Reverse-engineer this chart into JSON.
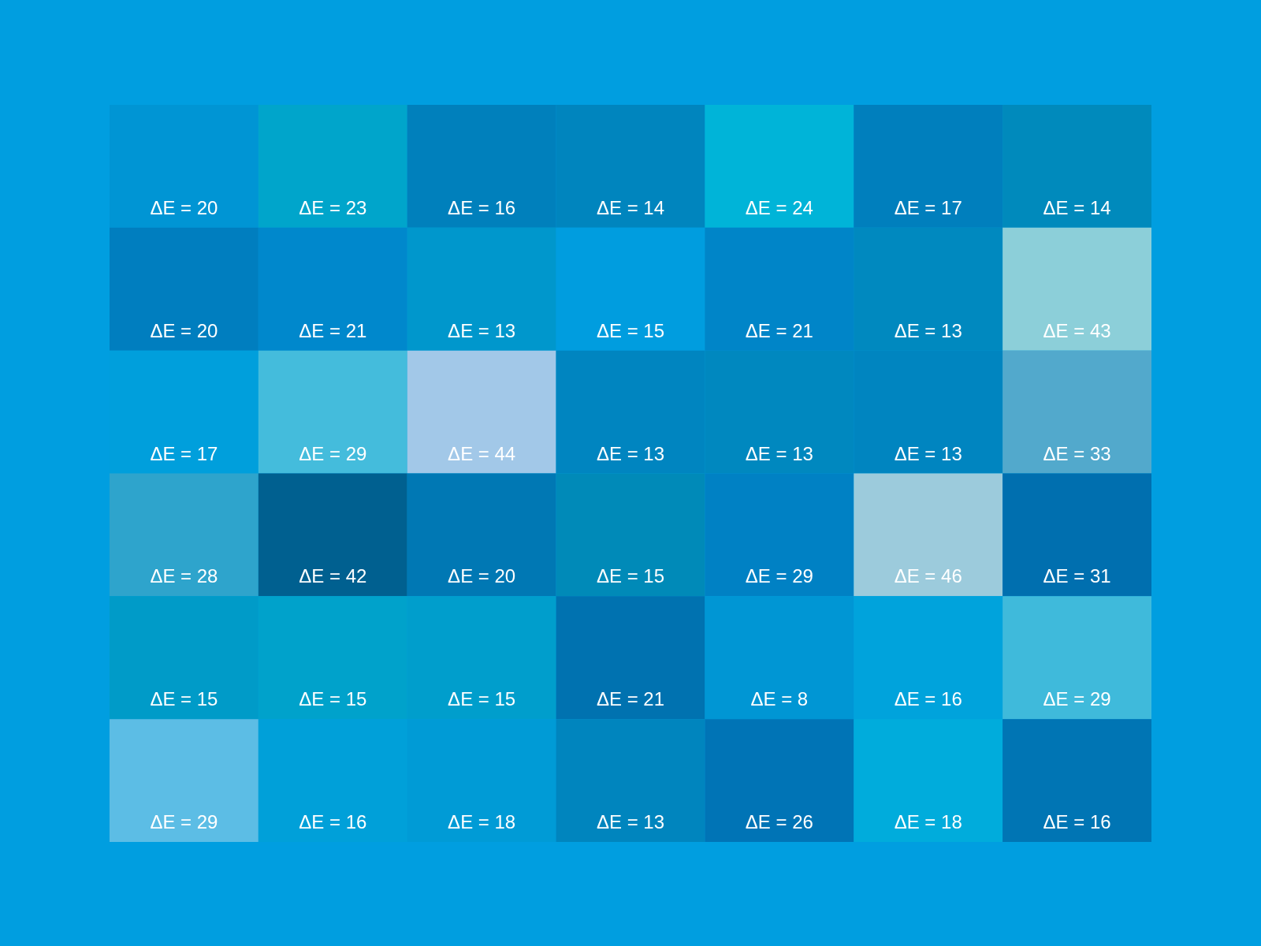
{
  "chart_data": {
    "type": "heatmap",
    "categories": [
      null,
      null,
      null,
      null,
      null,
      null,
      null
    ],
    "y_categories": [
      null,
      null,
      null,
      null,
      null,
      null
    ],
    "tick_labels": false,
    "cells": [
      [
        20,
        23,
        16,
        14,
        24,
        17,
        14
      ],
      [
        20,
        21,
        13,
        15,
        21,
        13,
        43
      ],
      [
        17,
        29,
        44,
        13,
        13,
        13,
        33
      ],
      [
        28,
        42,
        20,
        15,
        29,
        46,
        31
      ],
      [
        15,
        15,
        15,
        21,
        8,
        16,
        29
      ],
      [
        29,
        16,
        18,
        13,
        26,
        18,
        16
      ]
    ],
    "cell_labels": [
      [
        "ΔE = 20",
        "ΔE = 23",
        "ΔE = 16",
        "ΔE = 14",
        "ΔE = 24",
        "ΔE = 17",
        "ΔE = 14"
      ],
      [
        "ΔE = 20",
        "ΔE = 21",
        "ΔE = 13",
        "ΔE = 15",
        "ΔE = 21",
        "ΔE = 13",
        "ΔE = 43"
      ],
      [
        "ΔE = 17",
        "ΔE = 29",
        "ΔE = 44",
        "ΔE = 13",
        "ΔE = 13",
        "ΔE = 13",
        "ΔE = 33"
      ],
      [
        "ΔE = 28",
        "ΔE = 42",
        "ΔE = 20",
        "ΔE = 15",
        "ΔE = 29",
        "ΔE = 46",
        "ΔE = 31"
      ],
      [
        "ΔE = 15",
        "ΔE = 15",
        "ΔE = 15",
        "ΔE = 21",
        "ΔE = 8",
        "ΔE = 16",
        "ΔE = 29"
      ],
      [
        "ΔE = 29",
        "ΔE = 16",
        "ΔE = 18",
        "ΔE = 13",
        "ΔE = 26",
        "ΔE = 18",
        "ΔE = 16"
      ]
    ],
    "colors": [
      [
        "#0095d4",
        "#00a5cb",
        "#0080bc",
        "#0085be",
        "#00b4d8",
        "#007fbd",
        "#008abc"
      ],
      [
        "#007ebf",
        "#0088cc",
        "#0097cc",
        "#009ddf",
        "#0085c8",
        "#0089bf",
        "#8ccfd9"
      ],
      [
        "#009fdc",
        "#44bcdc",
        "#a2c8e8",
        "#0085c0",
        "#0088bf",
        "#0085c0",
        "#52a9cc"
      ],
      [
        "#2ea4cc",
        "#006090",
        "#0078b4",
        "#008ab8",
        "#0081c4",
        "#9ccbdc",
        "#006faf"
      ],
      [
        "#009bc8",
        "#00a2cb",
        "#009ecc",
        "#0072b0",
        "#0096d4",
        "#00a3dc",
        "#3fbadb"
      ],
      [
        "#5cbde5",
        "#00a0d9",
        "#009bd6",
        "#0085be",
        "#0074b6",
        "#00acdc",
        "#0075b4"
      ]
    ]
  }
}
